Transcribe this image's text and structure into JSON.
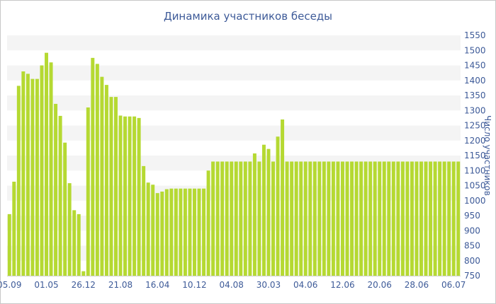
{
  "chart_data": {
    "type": "bar",
    "title": "Динамика участников беседы",
    "xlabel": "",
    "ylabel": "Число участников",
    "ylim": [
      750,
      1550
    ],
    "yticks": [
      750,
      800,
      850,
      900,
      950,
      1000,
      1050,
      1100,
      1150,
      1200,
      1250,
      1300,
      1350,
      1400,
      1450,
      1500,
      1550
    ],
    "xtick_labels": [
      "05.09",
      "01.05",
      "26.12",
      "21.08",
      "16.04",
      "10.12",
      "04.08",
      "30.03",
      "04.06",
      "12.06",
      "20.06",
      "28.06",
      "06.07"
    ],
    "xtick_bar_index": [
      0,
      8,
      16,
      24,
      32,
      40,
      48,
      56,
      64,
      72,
      80,
      88,
      96
    ],
    "grid": "horizontal bands",
    "bar_color": "#b5d932",
    "band_color": "#f4f4f4",
    "text_color": "#3d5a98",
    "values": [
      955,
      1063,
      1382,
      1430,
      1422,
      1405,
      1405,
      1450,
      1492,
      1460,
      1322,
      1282,
      1193,
      1058,
      968,
      955,
      765,
      1310,
      1475,
      1455,
      1412,
      1385,
      1345,
      1345,
      1283,
      1280,
      1280,
      1280,
      1275,
      1115,
      1060,
      1053,
      1025,
      1030,
      1038,
      1040,
      1040,
      1040,
      1040,
      1040,
      1040,
      1040,
      1040,
      1100,
      1130,
      1130,
      1130,
      1130,
      1130,
      1130,
      1130,
      1130,
      1130,
      1157,
      1130,
      1186,
      1172,
      1130,
      1213,
      1270,
      1130,
      1130,
      1130,
      1130,
      1130,
      1130,
      1130,
      1130,
      1130,
      1130,
      1130,
      1130,
      1130,
      1130,
      1130,
      1130,
      1130,
      1130,
      1130,
      1130,
      1130,
      1130,
      1130,
      1130,
      1130,
      1130,
      1130,
      1130,
      1130,
      1130,
      1130,
      1130,
      1130,
      1130,
      1130,
      1130,
      1130,
      1130
    ]
  }
}
